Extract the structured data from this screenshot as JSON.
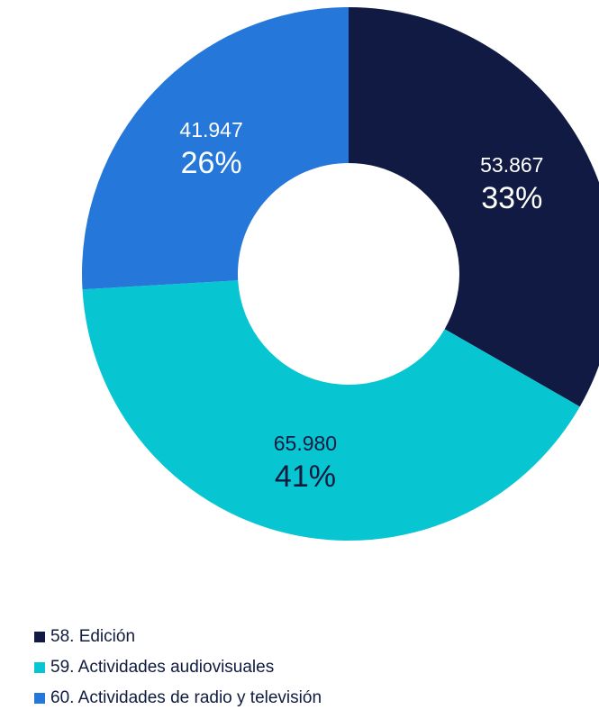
{
  "chart_data": {
    "type": "pie",
    "categories": [
      "58. Edición",
      "59. Actividades audiovisuales",
      "60. Actividades de radio y televisión"
    ],
    "values": [
      53867,
      65980,
      41947
    ],
    "value_labels": [
      "53.867",
      "65.980",
      "41.947"
    ],
    "percent_labels": [
      "33%",
      "41%",
      "26%"
    ],
    "colors": [
      "#111a42",
      "#08c6d1",
      "#2577da"
    ],
    "donut": true,
    "start_angle_deg": 0,
    "direction": "clockwise",
    "legend_position": "bottom-left",
    "title": ""
  }
}
